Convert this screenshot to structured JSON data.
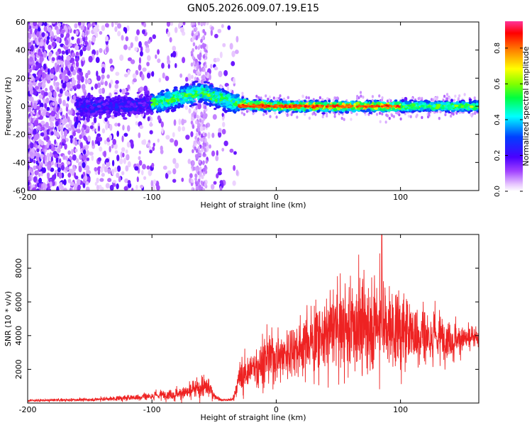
{
  "title": "GN05.2026.009.07.19.E15",
  "chart_data": [
    {
      "type": "heatmap",
      "xlabel": "Height of straight line (km)",
      "ylabel": "Frequency (Hz)",
      "xlim": [
        -200,
        163
      ],
      "ylim": [
        -60,
        60
      ],
      "xticks": [
        -200,
        -100,
        0,
        100
      ],
      "yticks": [
        -60,
        -40,
        -20,
        0,
        20,
        40,
        60
      ],
      "grid": false,
      "colorbar": {
        "label": "Normalized spectral amplitude",
        "range": [
          0,
          0.95
        ],
        "ticks": [
          0.0,
          0.2,
          0.4,
          0.6,
          0.8
        ],
        "colormap": "rainbow (lavender-violet-blue-cyan-green-yellow-orange-red)"
      },
      "ridge": {
        "description": "spectral ridge center frequency (Hz) vs height (km)",
        "x": [
          -200,
          -150,
          -120,
          -100,
          -80,
          -60,
          -50,
          -40,
          -30,
          -20,
          0,
          50,
          100,
          163
        ],
        "y": [
          0,
          0,
          0,
          2,
          6,
          10,
          7,
          4,
          2,
          1,
          0,
          0,
          0,
          0
        ]
      },
      "high_amplitude_band": {
        "x_range": [
          -30,
          100
        ],
        "frequency_hz": 0,
        "peak_amplitude": 0.95
      }
    },
    {
      "type": "line",
      "xlabel": "Height of straight line (km)",
      "ylabel": "SNR (10 * v/v)",
      "xlim": [
        -200,
        163
      ],
      "ylim": [
        0,
        10000
      ],
      "xticks": [
        -200,
        -100,
        0,
        100
      ],
      "yticks": [
        2000,
        4000,
        6000,
        8000
      ],
      "grid": false,
      "color": "#ee2222",
      "envelope": {
        "x": [
          -200,
          -150,
          -120,
          -100,
          -80,
          -70,
          -60,
          -55,
          -50,
          -45,
          -40,
          -35,
          -30,
          -25,
          -20,
          -10,
          0,
          10,
          20,
          30,
          40,
          50,
          60,
          70,
          80,
          90,
          100,
          110,
          120,
          130,
          140,
          150,
          163
        ],
        "mean": [
          150,
          200,
          300,
          420,
          550,
          650,
          900,
          1000,
          450,
          200,
          180,
          200,
          1300,
          1800,
          2000,
          2400,
          2800,
          3000,
          3400,
          3700,
          4200,
          4400,
          4500,
          4600,
          4800,
          4500,
          4300,
          4200,
          4000,
          3900,
          3800,
          3800,
          3800
        ],
        "spread": [
          60,
          80,
          150,
          200,
          280,
          400,
          600,
          650,
          200,
          80,
          60,
          100,
          700,
          900,
          1000,
          1200,
          1300,
          1300,
          1500,
          1700,
          1800,
          2100,
          2300,
          2400,
          2600,
          2200,
          2000,
          1700,
          1500,
          1200,
          900,
          700,
          500
        ]
      },
      "peak": {
        "x": 85,
        "y": 10000
      }
    }
  ]
}
